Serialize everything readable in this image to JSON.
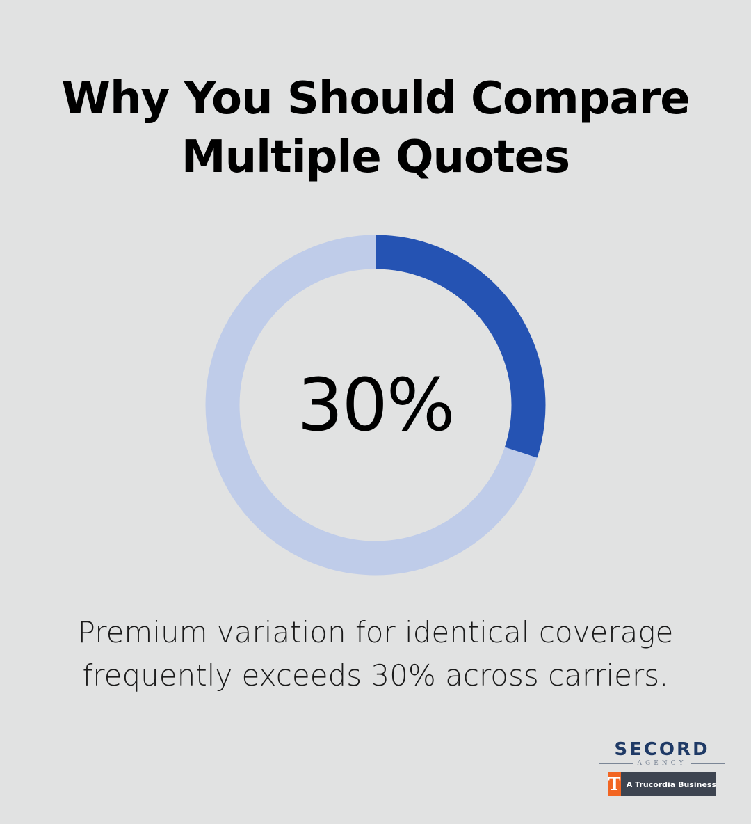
{
  "title_lines": [
    "Why You Should Compare",
    "Multiple Quotes"
  ],
  "chart_data": {
    "type": "pie",
    "style": "donut",
    "value": 30,
    "center_label": "30%",
    "slices": [
      {
        "value": 30,
        "color": "#2553b3"
      },
      {
        "value": 70,
        "color": "#bfcce9"
      }
    ]
  },
  "caption_lines": [
    "Premium variation for identical coverage",
    "frequently exceeds 30% across carriers."
  ],
  "logo": {
    "name": "SECORD",
    "sub": "AGENCY",
    "badge_mark": "T",
    "badge_text": "A Trucordia Business",
    "colors": {
      "name": "#1f3a66",
      "badge_bg": "#3d4450",
      "mark": "#f26522"
    }
  }
}
